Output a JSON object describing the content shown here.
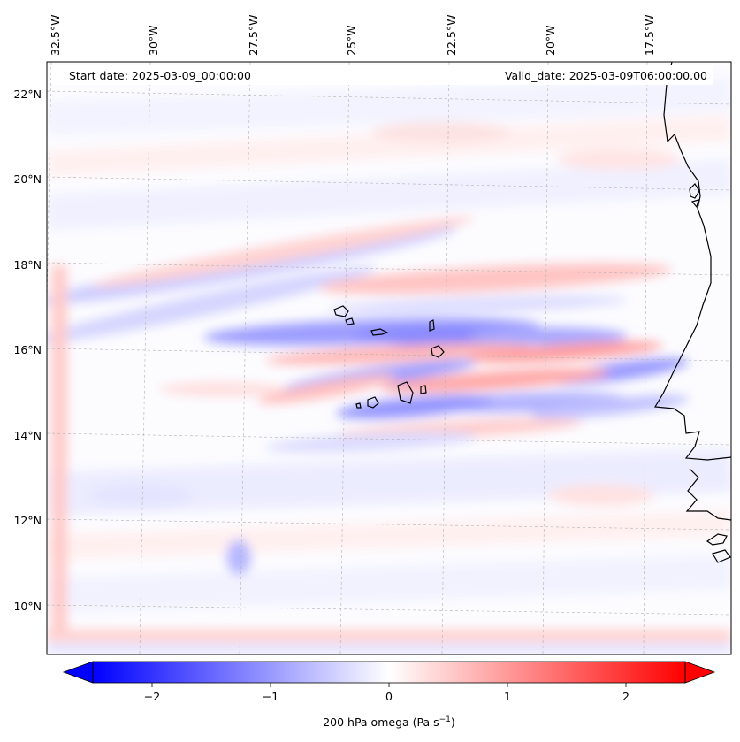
{
  "header": {
    "start_date": "Start date: 2025-03-09_00:00:00",
    "valid_date": "Valid_date: 2025-03-09T06:00:00.00"
  },
  "axes": {
    "longitude_labels": [
      "32.5°W",
      "30°W",
      "27.5°W",
      "25°W",
      "22.5°W",
      "20°W",
      "17.5°W"
    ],
    "latitude_labels": [
      "22°N",
      "20°N",
      "18°N",
      "16°N",
      "14°N",
      "12°N",
      "10°N"
    ]
  },
  "field": {
    "variable": "200 hPa omega",
    "colormap": "bwr",
    "colors": {
      "negative": "#0000ff",
      "zero": "#ffffff",
      "positive": "#ff0000",
      "coastline": "#000000",
      "gridline": "#b0b0b0"
    }
  },
  "colorbar": {
    "ticks": [
      "−2",
      "−1",
      "0",
      "1",
      "2"
    ],
    "label": "200 hPa omega (Pa s",
    "label_sup": "−1",
    "label_close": ")",
    "range": [
      -2.5,
      2.5
    ],
    "extend": "both"
  }
}
